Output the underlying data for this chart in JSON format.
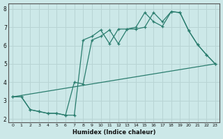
{
  "xlabel": "Humidex (Indice chaleur)",
  "background_color": "#cce8e8",
  "grid_color": "#b8d4d4",
  "line_color": "#2a7d6e",
  "xlim_min": -0.5,
  "xlim_max": 23.5,
  "ylim_min": 1.8,
  "ylim_max": 8.3,
  "xticks": [
    0,
    1,
    2,
    3,
    4,
    5,
    6,
    7,
    8,
    9,
    10,
    11,
    12,
    13,
    14,
    15,
    16,
    17,
    18,
    19,
    20,
    21,
    22,
    23
  ],
  "yticks": [
    2,
    3,
    4,
    5,
    6,
    7,
    8
  ],
  "line1_x": [
    0,
    1,
    2,
    3,
    4,
    5,
    6,
    7,
    8,
    9,
    10,
    11,
    12,
    13,
    14,
    15,
    16,
    17,
    18,
    19,
    20,
    21,
    22,
    23
  ],
  "line1_y": [
    3.2,
    3.2,
    2.5,
    2.4,
    2.3,
    2.3,
    2.2,
    2.2,
    6.3,
    6.5,
    6.85,
    6.1,
    6.9,
    6.9,
    7.0,
    7.8,
    7.3,
    7.05,
    7.85,
    7.8,
    6.8,
    6.05,
    5.5,
    5.0
  ],
  "line2_x": [
    0,
    1,
    2,
    3,
    4,
    5,
    6,
    7,
    8,
    9,
    10,
    11,
    12,
    13,
    14,
    15,
    16,
    17,
    18,
    19,
    20,
    21,
    22,
    23
  ],
  "line2_y": [
    3.2,
    3.2,
    2.5,
    2.4,
    2.3,
    2.3,
    2.2,
    4.0,
    3.9,
    6.3,
    6.5,
    6.85,
    6.1,
    6.9,
    6.9,
    7.0,
    7.8,
    7.3,
    7.85,
    7.8,
    6.8,
    6.05,
    5.5,
    5.0
  ],
  "line3_x": [
    0,
    23
  ],
  "line3_y": [
    3.2,
    5.0
  ]
}
